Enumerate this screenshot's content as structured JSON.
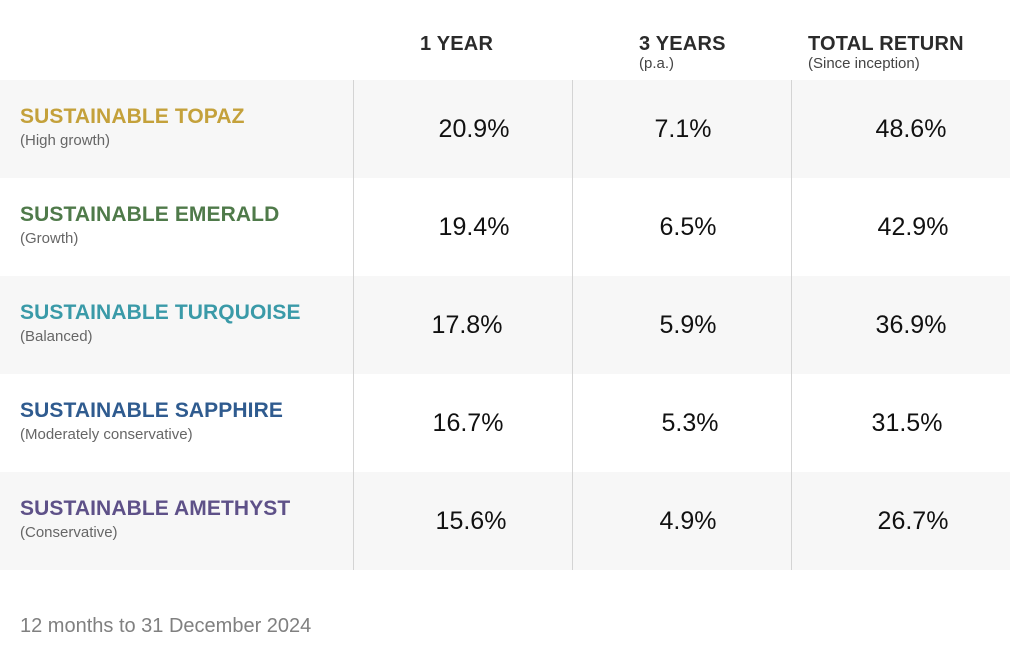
{
  "header": {
    "col1_title": "1 YEAR",
    "col2_title": "3 YEARS",
    "col2_sub": "(p.a.)",
    "col3_title": "TOTAL RETURN",
    "col3_sub": "(Since inception)"
  },
  "funds": [
    {
      "name": "SUSTAINABLE TOPAZ",
      "desc": "(High growth)",
      "color": "#c4a13b",
      "one_year": "20.9%",
      "three_years": "7.1%",
      "total_return": "48.6%"
    },
    {
      "name": "SUSTAINABLE EMERALD",
      "desc": "(Growth)",
      "color": "#4f7a4a",
      "one_year": "19.4%",
      "three_years": "6.5%",
      "total_return": "42.9%"
    },
    {
      "name": "SUSTAINABLE TURQUOISE",
      "desc": "(Balanced)",
      "color": "#3a9aa8",
      "one_year": "17.8%",
      "three_years": "5.9%",
      "total_return": "36.9%"
    },
    {
      "name": "SUSTAINABLE SAPPHIRE",
      "desc": "(Moderately conservative)",
      "color": "#2f5b8f",
      "one_year": "16.7%",
      "three_years": "5.3%",
      "total_return": "31.5%"
    },
    {
      "name": "SUSTAINABLE AMETHYST",
      "desc": "(Conservative)",
      "color": "#5e5188",
      "one_year": "15.6%",
      "three_years": "4.9%",
      "total_return": "26.7%"
    }
  ],
  "footnote": "12 months to 31 December 2024"
}
